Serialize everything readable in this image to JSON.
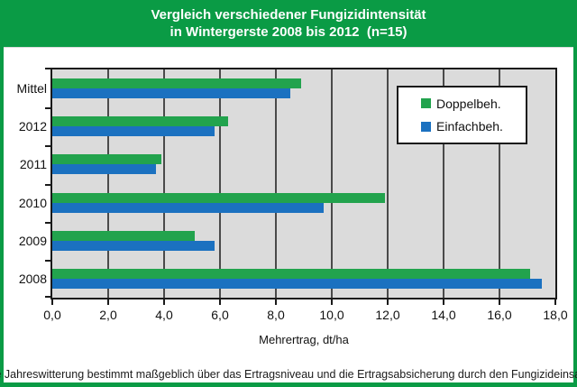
{
  "header": {
    "title_line1": "Vergleich verschiedener Fungizidintensität",
    "title_line2": "in Wintergerste 2008 bis 2012  (n=15)"
  },
  "footer": {
    "text": "Die Jahreswitterung bestimmt maßgeblich über das Ertragsniveau und die Ertragsabsicherung durch den Fungizideinsatz."
  },
  "colors": {
    "frame_green": "#0a9b45",
    "bar_green": "#22a34d",
    "bar_blue": "#1b71c0",
    "plot_bg": "#dbdbdb",
    "gridline": "#4a4a4a"
  },
  "legend": {
    "entries": [
      {
        "label": "Doppelbeh.",
        "color": "#22a34d"
      },
      {
        "label": "Einfachbeh.",
        "color": "#1b71c0"
      }
    ]
  },
  "chart_data": {
    "type": "bar",
    "orientation": "horizontal",
    "title": "Vergleich verschiedener Fungizidintensität in Wintergerste 2008 bis 2012 (n=15)",
    "categories": [
      "Mittel",
      "2012",
      "2011",
      "2010",
      "2009",
      "2008"
    ],
    "series": [
      {
        "name": "Doppelbeh.",
        "color": "#22a34d",
        "values": [
          8.9,
          6.3,
          3.9,
          11.9,
          5.1,
          17.1
        ]
      },
      {
        "name": "Einfachbeh.",
        "color": "#1b71c0",
        "values": [
          8.5,
          5.8,
          3.7,
          9.7,
          5.8,
          17.5
        ]
      },
      {
        "name": "_note",
        "color": "",
        "values": []
      }
    ],
    "xlabel": "Mehrertrag, dt/ha",
    "ylabel": "",
    "xlim": [
      0,
      18
    ],
    "xtick_step": 2,
    "xtick_labels": [
      "0,0",
      "2,0",
      "4,0",
      "6,0",
      "8,0",
      "10,0",
      "12,0",
      "14,0",
      "16,0",
      "18,0"
    ],
    "grid": true,
    "grid_axis": "x",
    "legend_position": "inside-top-right",
    "annotation": "Die Jahreswitterung bestimmt maßgeblich über das Ertragsniveau und die Ertragsabsicherung durch den Fungizideinsatz."
  }
}
